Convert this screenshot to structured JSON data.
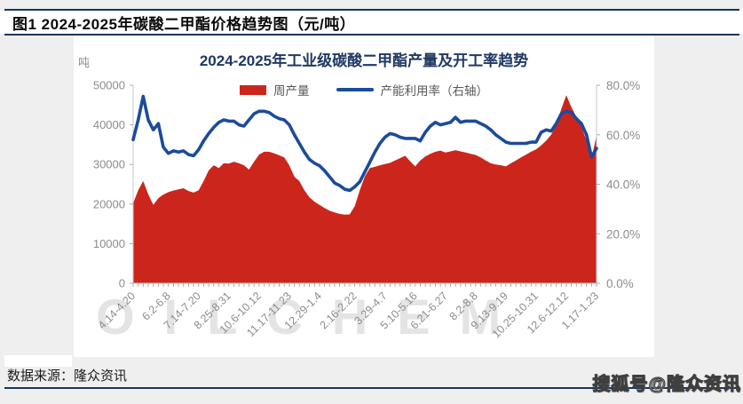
{
  "header": {
    "title": "图1 2024-2025年碳酸二甲酯价格趋势图（元/吨）"
  },
  "watermark_text": "OILCHEM",
  "footer": {
    "source": "数据来源：隆众资讯",
    "watermark": "搜狐号@隆众资讯"
  },
  "colors": {
    "production_red": "#cc261c",
    "utilization_blue": "#1b4b9b",
    "navy_rule": "#16365c",
    "chart_title_navy": "#1f3864",
    "axis_text_gray": "#8c8c8c",
    "legend_text_gray": "#595959",
    "card_white": "#ffffff",
    "page_gray": "#efefef",
    "oilchem_gray": "#e4e4e4"
  },
  "chart_data": {
    "type": "combo",
    "title": "2024-2025年工业级碳酸二甲酯产量及开工率趋势",
    "grid": false,
    "legend_position": "top",
    "y_left": {
      "label": "吨",
      "min": 0,
      "max": 50000,
      "ticks": [
        "50000",
        "40000",
        "30000",
        "20000",
        "10000",
        "0"
      ]
    },
    "y_right": {
      "min_percent": 0,
      "max_percent": 80,
      "ticks": [
        "80.0%",
        "60.0%",
        "40.0%",
        "20.0%",
        "0.0%"
      ]
    },
    "x_tick_labels": [
      "4.14-4.20",
      "6.2-6.8",
      "7.14-7.20",
      "8.25-8.31",
      "10.6-10.12",
      "11.17-11.23",
      "12.29-1.4",
      "2.16-2.22",
      "3.29-4.7",
      "5.10-5.16",
      "6.21-6.27",
      "8.2-8.8",
      "9.13-9.19",
      "10.25-10.31",
      "12.6-12.12",
      "1.17-1.23"
    ],
    "x_tick_weeks": [
      0,
      7,
      13,
      19,
      25,
      31,
      37,
      44,
      50,
      56,
      62,
      68,
      74,
      80,
      86,
      92
    ],
    "n_weeks": 93,
    "series": [
      {
        "name": "周产量",
        "type": "area",
        "axis": "left",
        "color": "#cc261c",
        "values": [
          20200,
          23500,
          25800,
          22500,
          19800,
          21500,
          22400,
          23000,
          23400,
          23700,
          24000,
          23300,
          22900,
          23500,
          25800,
          28500,
          29800,
          29100,
          30300,
          30200,
          30700,
          30300,
          29800,
          28700,
          30700,
          32500,
          33200,
          33200,
          32800,
          32300,
          31800,
          29800,
          26900,
          25800,
          23500,
          21700,
          20600,
          19800,
          19000,
          18300,
          17900,
          17500,
          17300,
          17400,
          19500,
          23500,
          27000,
          29100,
          29400,
          29800,
          30100,
          30400,
          31000,
          31600,
          32200,
          30800,
          29500,
          31000,
          32000,
          32700,
          33200,
          33500,
          33000,
          33300,
          33600,
          33300,
          33000,
          32700,
          32400,
          31800,
          31000,
          30300,
          30000,
          29800,
          29500,
          30300,
          31000,
          31800,
          32500,
          33200,
          33800,
          34800,
          36000,
          37500,
          40000,
          44000,
          47500,
          44500,
          42000,
          39500,
          36000,
          31500,
          37300
        ]
      },
      {
        "name": "产能利用率（右轴）",
        "type": "line",
        "axis": "right",
        "color": "#1b4b9b",
        "values": [
          58,
          66,
          75.5,
          66,
          62,
          64.5,
          55,
          52.5,
          53.5,
          53,
          53.5,
          52,
          51.5,
          54,
          57.5,
          60.5,
          63,
          65,
          66,
          65.5,
          65.5,
          64,
          63.5,
          66,
          68.5,
          69.5,
          69.5,
          69,
          67.5,
          66.5,
          66,
          64,
          60,
          56.5,
          53,
          50,
          48.5,
          47.5,
          45.5,
          43,
          40.5,
          39.5,
          38,
          37.5,
          39,
          41,
          45,
          49,
          53,
          56.5,
          59,
          60.5,
          60,
          59,
          58.5,
          58.5,
          58.5,
          57.5,
          61,
          63.5,
          65,
          64,
          64.5,
          65,
          67,
          65,
          65.5,
          65.5,
          65.5,
          64.5,
          63.5,
          62,
          60,
          58.5,
          57,
          56.5,
          56.5,
          56.5,
          56.5,
          57,
          57,
          61,
          62,
          61.5,
          64.5,
          68.5,
          69.5,
          69,
          66.5,
          64.5,
          60,
          51,
          54.5
        ]
      }
    ]
  }
}
